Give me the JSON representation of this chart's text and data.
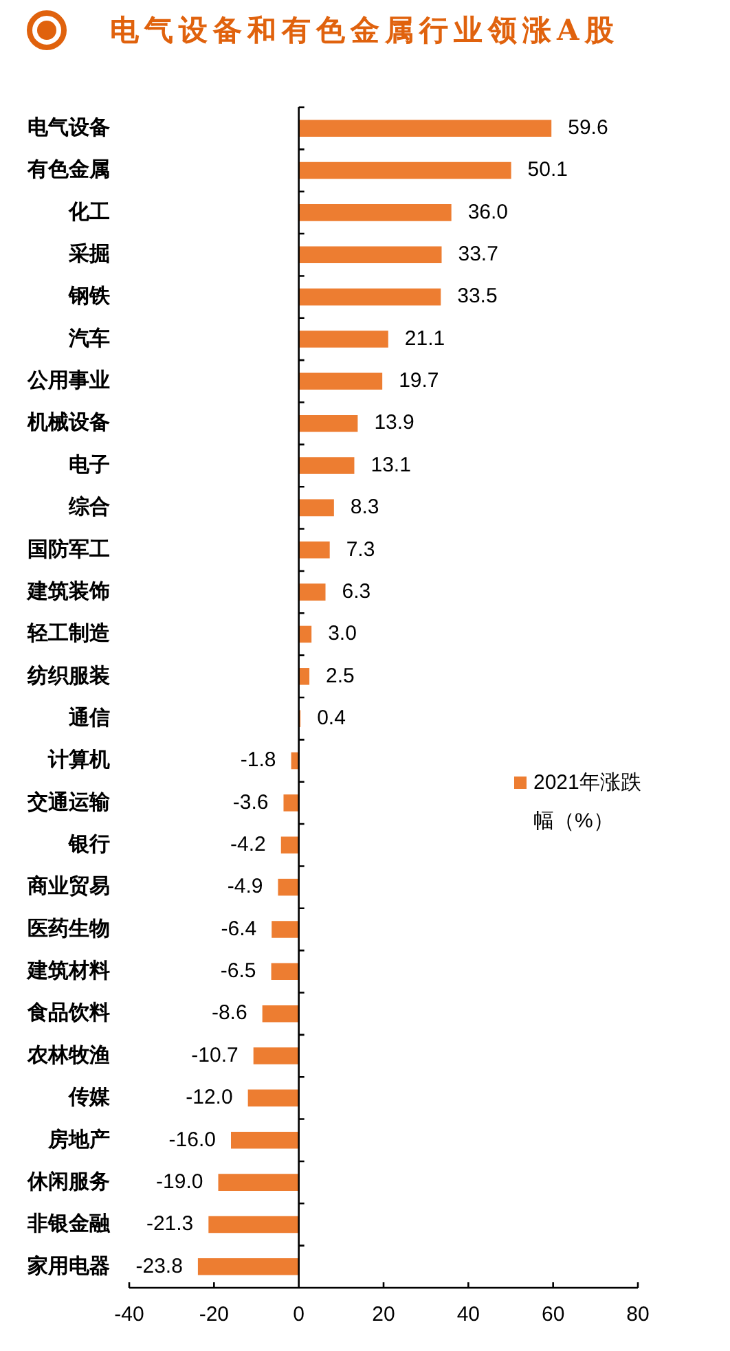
{
  "chart_data": {
    "type": "bar",
    "orientation": "horizontal",
    "title": "电气设备和有色金属行业领涨A股",
    "categories": [
      "电气设备",
      "有色金属",
      "化工",
      "采掘",
      "钢铁",
      "汽车",
      "公用事业",
      "机械设备",
      "电子",
      "综合",
      "国防军工",
      "建筑装饰",
      "轻工制造",
      "纺织服装",
      "通信",
      "计算机",
      "交通运输",
      "银行",
      "商业贸易",
      "医药生物",
      "建筑材料",
      "食品饮料",
      "农林牧渔",
      "传媒",
      "房地产",
      "休闲服务",
      "非银金融",
      "家用电器"
    ],
    "series": [
      {
        "name": "2021年涨跌幅（%）",
        "color": "#ed7d31",
        "values": [
          59.6,
          50.1,
          36.0,
          33.7,
          33.5,
          21.1,
          19.7,
          13.9,
          13.1,
          8.3,
          7.3,
          6.3,
          3.0,
          2.5,
          0.4,
          -1.8,
          -3.6,
          -4.2,
          -4.9,
          -6.4,
          -6.5,
          -8.6,
          -10.7,
          -12.0,
          -16.0,
          -19.0,
          -21.3,
          -23.8
        ],
        "value_labels": [
          "59.6",
          "50.1",
          "36.0",
          "33.7",
          "33.5",
          "21.1",
          "19.7",
          "13.9",
          "13.1",
          "8.3",
          "7.3",
          "6.3",
          "3.0",
          "2.5",
          "0.4",
          "-1.8",
          "-3.6",
          "-4.2",
          "-4.9",
          "-6.4",
          "-6.5",
          "-8.6",
          "-10.7",
          "-12.0",
          "-16.0",
          "-19.0",
          "-21.3",
          "-23.8"
        ]
      }
    ],
    "xlim": [
      -40,
      80
    ],
    "xticks": [
      -40,
      -20,
      0,
      20,
      40,
      60,
      80
    ],
    "legend": "right"
  }
}
